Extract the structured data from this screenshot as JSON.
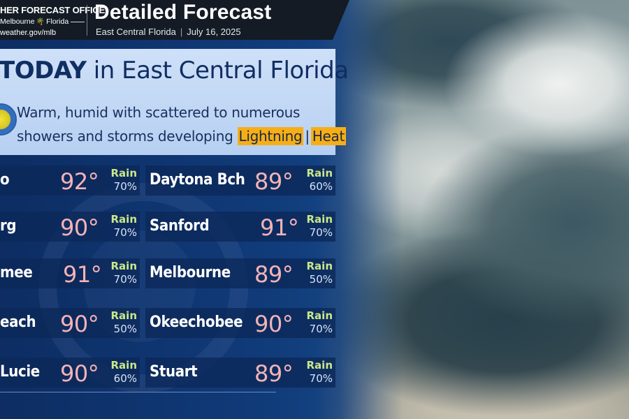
{
  "header": {
    "office_name": "HER FORECAST OFFICE",
    "office_city": "Melbourne",
    "office_state": "Florida",
    "office_url": "weather.gov/mlb",
    "title": "Detailed Forecast",
    "region": "East Central Florida",
    "separator": "|",
    "date": "July 16, 2025"
  },
  "today": {
    "bold": "TODAY",
    "rest": " in East Central Florida",
    "line1": "Warm, humid with scattered to numerous",
    "line2": "showers and storms developing ",
    "tag1": "Lightning",
    "tag_sep": "|",
    "tag2": "Heat"
  },
  "rain_label": "Rain",
  "cities": [
    {
      "name": "o",
      "temp": "92°",
      "rain": "70%"
    },
    {
      "name": "Daytona Bch",
      "temp": "89°",
      "rain": "60%"
    },
    {
      "name": "rg",
      "temp": "90°",
      "rain": "70%"
    },
    {
      "name": "Sanford",
      "temp": "91°",
      "rain": "70%"
    },
    {
      "name": "mee",
      "temp": "91°",
      "rain": "70%"
    },
    {
      "name": "Melbourne",
      "temp": "89°",
      "rain": "50%"
    },
    {
      "name": "each",
      "temp": "90°",
      "rain": "50%"
    },
    {
      "name": "Okeechobee",
      "temp": "90°",
      "rain": "70%"
    },
    {
      "name": "Lucie",
      "temp": "90°",
      "rain": "60%"
    },
    {
      "name": "Stuart",
      "temp": "89°",
      "rain": "70%"
    }
  ],
  "colors": {
    "panel": "#103a78",
    "temp": "#f3b3b7",
    "rain_label": "#c9e88a",
    "tag": "#f7ae16"
  }
}
